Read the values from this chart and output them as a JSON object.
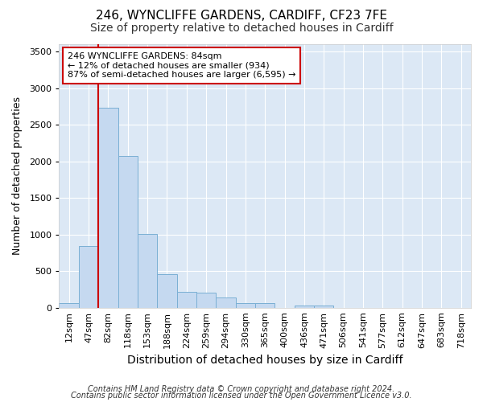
{
  "title1": "246, WYNCLIFFE GARDENS, CARDIFF, CF23 7FE",
  "title2": "Size of property relative to detached houses in Cardiff",
  "xlabel": "Distribution of detached houses by size in Cardiff",
  "ylabel": "Number of detached properties",
  "categories": [
    "12sqm",
    "47sqm",
    "82sqm",
    "118sqm",
    "153sqm",
    "188sqm",
    "224sqm",
    "259sqm",
    "294sqm",
    "330sqm",
    "365sqm",
    "400sqm",
    "436sqm",
    "471sqm",
    "506sqm",
    "541sqm",
    "577sqm",
    "612sqm",
    "647sqm",
    "683sqm",
    "718sqm"
  ],
  "bar_values": [
    60,
    845,
    2730,
    2070,
    1005,
    455,
    215,
    210,
    140,
    65,
    60,
    0,
    30,
    25,
    0,
    0,
    0,
    0,
    0,
    0,
    0
  ],
  "bar_color": "#c5d9f0",
  "bar_edge_color": "#7aafd4",
  "vline_color": "#cc0000",
  "vline_x_index": 2,
  "ylim": [
    0,
    3600
  ],
  "yticks": [
    0,
    500,
    1000,
    1500,
    2000,
    2500,
    3000,
    3500
  ],
  "annotation_line1": "246 WYNCLIFFE GARDENS: 84sqm",
  "annotation_line2": "← 12% of detached houses are smaller (934)",
  "annotation_line3": "87% of semi-detached houses are larger (6,595) →",
  "annotation_box_facecolor": "#ffffff",
  "annotation_box_edgecolor": "#cc0000",
  "footer1": "Contains HM Land Registry data © Crown copyright and database right 2024.",
  "footer2": "Contains public sector information licensed under the Open Government Licence v3.0.",
  "fig_facecolor": "#ffffff",
  "plot_facecolor": "#dce8f5",
  "grid_color": "#ffffff",
  "title1_fontsize": 11,
  "title2_fontsize": 10,
  "xlabel_fontsize": 10,
  "ylabel_fontsize": 9,
  "tick_fontsize": 8,
  "annotation_fontsize": 8,
  "footer_fontsize": 7
}
